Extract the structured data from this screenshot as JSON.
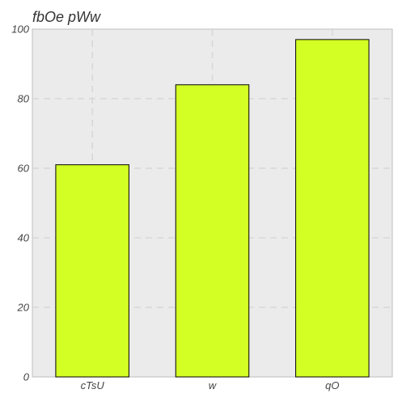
{
  "chart_data": {
    "type": "bar",
    "title": "fbOe  pWw",
    "xlabel": "",
    "ylabel": "",
    "categories": [
      "cTsU",
      "w",
      "qO"
    ],
    "values": [
      61,
      84,
      97
    ],
    "ylim": [
      0,
      100
    ],
    "yticks": [
      0,
      20,
      40,
      60,
      80,
      100
    ],
    "grid": true,
    "bar_color": "#d4ff24",
    "bar_edge_color": "#000000",
    "plot_background": "#ebebeb"
  }
}
